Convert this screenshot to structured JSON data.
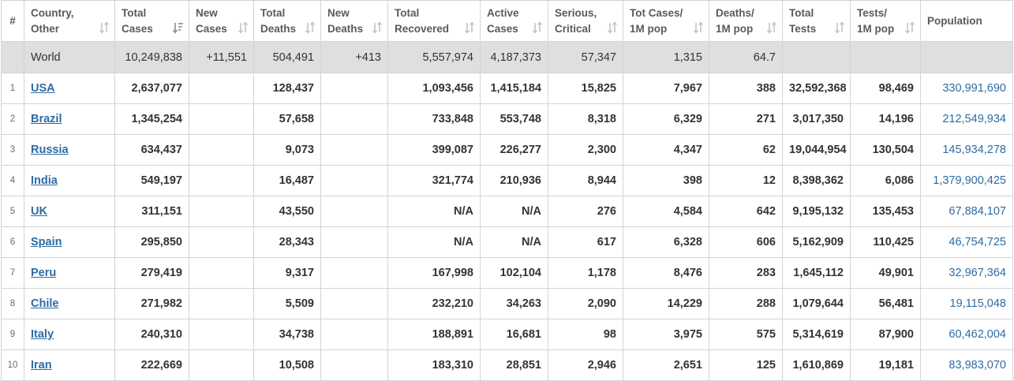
{
  "header": {
    "index": "#",
    "columns": [
      {
        "key": "country",
        "line1": "Country,",
        "line2": "Other"
      },
      {
        "key": "total_cases",
        "line1": "Total",
        "line2": "Cases"
      },
      {
        "key": "new_cases",
        "line1": "New",
        "line2": "Cases"
      },
      {
        "key": "total_deaths",
        "line1": "Total",
        "line2": "Deaths"
      },
      {
        "key": "new_deaths",
        "line1": "New",
        "line2": "Deaths"
      },
      {
        "key": "total_recovered",
        "line1": "Total",
        "line2": "Recovered"
      },
      {
        "key": "active_cases",
        "line1": "Active",
        "line2": "Cases"
      },
      {
        "key": "serious_critical",
        "line1": "Serious,",
        "line2": "Critical"
      },
      {
        "key": "tot_cases_1m",
        "line1": "Tot Cases/",
        "line2": "1M pop"
      },
      {
        "key": "deaths_1m",
        "line1": "Deaths/",
        "line2": "1M pop"
      },
      {
        "key": "total_tests",
        "line1": "Total",
        "line2": "Tests"
      },
      {
        "key": "tests_1m",
        "line1": "Tests/",
        "line2": "1M pop"
      },
      {
        "key": "population",
        "line1": "",
        "line2": "Population"
      }
    ]
  },
  "world": {
    "country": "World",
    "total_cases": "10,249,838",
    "new_cases": "+11,551",
    "total_deaths": "504,491",
    "new_deaths": "+413",
    "total_recovered": "5,557,974",
    "active_cases": "4,187,373",
    "serious_critical": "57,347",
    "tot_cases_1m": "1,315",
    "deaths_1m": "64.7",
    "total_tests": "",
    "tests_1m": "",
    "population": ""
  },
  "rows": [
    {
      "idx": "1",
      "country": "USA",
      "total_cases": "2,637,077",
      "new_cases": "",
      "total_deaths": "128,437",
      "new_deaths": "",
      "total_recovered": "1,093,456",
      "active_cases": "1,415,184",
      "serious_critical": "15,825",
      "tot_cases_1m": "7,967",
      "deaths_1m": "388",
      "total_tests": "32,592,368",
      "tests_1m": "98,469",
      "population": "330,991,690"
    },
    {
      "idx": "2",
      "country": "Brazil",
      "total_cases": "1,345,254",
      "new_cases": "",
      "total_deaths": "57,658",
      "new_deaths": "",
      "total_recovered": "733,848",
      "active_cases": "553,748",
      "serious_critical": "8,318",
      "tot_cases_1m": "6,329",
      "deaths_1m": "271",
      "total_tests": "3,017,350",
      "tests_1m": "14,196",
      "population": "212,549,934"
    },
    {
      "idx": "3",
      "country": "Russia",
      "total_cases": "634,437",
      "new_cases": "",
      "total_deaths": "9,073",
      "new_deaths": "",
      "total_recovered": "399,087",
      "active_cases": "226,277",
      "serious_critical": "2,300",
      "tot_cases_1m": "4,347",
      "deaths_1m": "62",
      "total_tests": "19,044,954",
      "tests_1m": "130,504",
      "population": "145,934,278"
    },
    {
      "idx": "4",
      "country": "India",
      "total_cases": "549,197",
      "new_cases": "",
      "total_deaths": "16,487",
      "new_deaths": "",
      "total_recovered": "321,774",
      "active_cases": "210,936",
      "serious_critical": "8,944",
      "tot_cases_1m": "398",
      "deaths_1m": "12",
      "total_tests": "8,398,362",
      "tests_1m": "6,086",
      "population": "1,379,900,425"
    },
    {
      "idx": "5",
      "country": "UK",
      "total_cases": "311,151",
      "new_cases": "",
      "total_deaths": "43,550",
      "new_deaths": "",
      "total_recovered": "N/A",
      "active_cases": "N/A",
      "serious_critical": "276",
      "tot_cases_1m": "4,584",
      "deaths_1m": "642",
      "total_tests": "9,195,132",
      "tests_1m": "135,453",
      "population": "67,884,107"
    },
    {
      "idx": "6",
      "country": "Spain",
      "total_cases": "295,850",
      "new_cases": "",
      "total_deaths": "28,343",
      "new_deaths": "",
      "total_recovered": "N/A",
      "active_cases": "N/A",
      "serious_critical": "617",
      "tot_cases_1m": "6,328",
      "deaths_1m": "606",
      "total_tests": "5,162,909",
      "tests_1m": "110,425",
      "population": "46,754,725"
    },
    {
      "idx": "7",
      "country": "Peru",
      "total_cases": "279,419",
      "new_cases": "",
      "total_deaths": "9,317",
      "new_deaths": "",
      "total_recovered": "167,998",
      "active_cases": "102,104",
      "serious_critical": "1,178",
      "tot_cases_1m": "8,476",
      "deaths_1m": "283",
      "total_tests": "1,645,112",
      "tests_1m": "49,901",
      "population": "32,967,364"
    },
    {
      "idx": "8",
      "country": "Chile",
      "total_cases": "271,982",
      "new_cases": "",
      "total_deaths": "5,509",
      "new_deaths": "",
      "total_recovered": "232,210",
      "active_cases": "34,263",
      "serious_critical": "2,090",
      "tot_cases_1m": "14,229",
      "deaths_1m": "288",
      "total_tests": "1,079,644",
      "tests_1m": "56,481",
      "population": "19,115,048"
    },
    {
      "idx": "9",
      "country": "Italy",
      "total_cases": "240,310",
      "new_cases": "",
      "total_deaths": "34,738",
      "new_deaths": "",
      "total_recovered": "188,891",
      "active_cases": "16,681",
      "serious_critical": "98",
      "tot_cases_1m": "3,975",
      "deaths_1m": "575",
      "total_tests": "5,314,619",
      "tests_1m": "87,900",
      "population": "60,462,004"
    },
    {
      "idx": "10",
      "country": "Iran",
      "total_cases": "222,669",
      "new_cases": "",
      "total_deaths": "10,508",
      "new_deaths": "",
      "total_recovered": "183,310",
      "active_cases": "28,851",
      "serious_critical": "2,946",
      "tot_cases_1m": "2,651",
      "deaths_1m": "125",
      "total_tests": "1,610,869",
      "tests_1m": "19,181",
      "population": "83,983,070"
    }
  ],
  "sort": {
    "active_column": "total_cases",
    "direction": "descending"
  },
  "icons": {
    "sort": "sort-arrows-icon",
    "sort_active": "sort-descending-icon"
  },
  "colors": {
    "link": "#2e6ba3",
    "world_row_bg": "#dfdfdf",
    "border": "#d4d4d4",
    "header_text": "#5a5a5a",
    "sort_icon": "#c4c4c4",
    "sort_active_icon": "#8a8a8a"
  }
}
